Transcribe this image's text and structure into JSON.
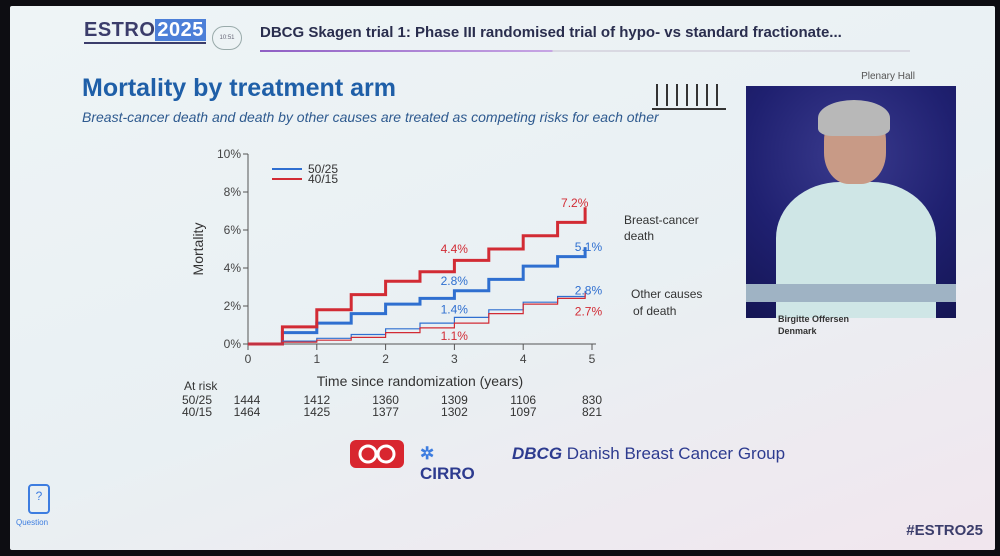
{
  "header": {
    "logo_text": "ESTRO",
    "logo_year": "2025",
    "time_chip": "10:51",
    "session_title": "DBCG Skagen trial 1: Phase III randomised trial of hypo- vs standard fractionate...",
    "hall": "Plenary Hall"
  },
  "slide": {
    "title": "Mortality by treatment arm",
    "subtitle": "Breast-cancer death and death by other causes are treated as competing risks for each other"
  },
  "speaker": {
    "name": "Birgitte Offersen",
    "country": "Denmark"
  },
  "chart_data": {
    "type": "line",
    "xlabel": "Time since randomization (years)",
    "ylabel": "Mortality",
    "xlim": [
      0,
      5
    ],
    "ylim": [
      0,
      10
    ],
    "x_ticks": [
      0,
      1,
      2,
      3,
      4,
      5
    ],
    "y_ticks": [
      "0%",
      "2%",
      "4%",
      "6%",
      "8%",
      "10%"
    ],
    "legend_position": "top-left",
    "legend": [
      {
        "name": "50/25",
        "color": "#2f6fd0"
      },
      {
        "name": "40/15",
        "color": "#d22b34"
      }
    ],
    "series": [
      {
        "group": "Breast-cancer death",
        "name": "50/25",
        "color": "#2f6fd0",
        "weight": "bold",
        "x": [
          0,
          0.5,
          1,
          1.5,
          2,
          2.5,
          3,
          3.5,
          4,
          4.5,
          4.9
        ],
        "y": [
          0,
          0.6,
          1.1,
          1.6,
          2.1,
          2.4,
          2.8,
          3.4,
          4.1,
          4.6,
          5.1
        ]
      },
      {
        "group": "Breast-cancer death",
        "name": "40/15",
        "color": "#d22b34",
        "weight": "bold",
        "x": [
          0,
          0.5,
          1,
          1.5,
          2,
          2.5,
          3,
          3.5,
          4,
          4.5,
          4.9
        ],
        "y": [
          0,
          0.9,
          1.8,
          2.6,
          3.3,
          3.8,
          4.4,
          5.0,
          5.7,
          6.4,
          7.2
        ]
      },
      {
        "group": "Other causes of death",
        "name": "50/25",
        "color": "#2f6fd0",
        "weight": "thin",
        "x": [
          0,
          0.5,
          1,
          1.5,
          2,
          2.5,
          3,
          3.5,
          4,
          4.5,
          4.9
        ],
        "y": [
          0,
          0.15,
          0.3,
          0.5,
          0.8,
          1.1,
          1.4,
          1.8,
          2.2,
          2.5,
          2.8
        ]
      },
      {
        "group": "Other causes of death",
        "name": "40/15",
        "color": "#d22b34",
        "weight": "thin",
        "x": [
          0,
          0.5,
          1,
          1.5,
          2,
          2.5,
          3,
          3.5,
          4,
          4.5,
          4.9
        ],
        "y": [
          0,
          0.1,
          0.2,
          0.35,
          0.6,
          0.85,
          1.1,
          1.6,
          2.1,
          2.4,
          2.7
        ]
      }
    ],
    "annotations": [
      {
        "text": "7.2%",
        "x": 4.55,
        "y": 7.2,
        "color": "#d22b34"
      },
      {
        "text": "5.1%",
        "x": 4.75,
        "y": 4.9,
        "color": "#2f6fd0"
      },
      {
        "text": "4.4%",
        "x": 2.8,
        "y": 4.8,
        "color": "#d22b34"
      },
      {
        "text": "2.8%",
        "x": 2.8,
        "y": 3.1,
        "color": "#2f6fd0"
      },
      {
        "text": "1.4%",
        "x": 2.8,
        "y": 1.6,
        "color": "#2f6fd0"
      },
      {
        "text": "1.1%",
        "x": 2.8,
        "y": 0.2,
        "color": "#d22b34"
      },
      {
        "text": "2.8%",
        "x": 4.75,
        "y": 2.6,
        "color": "#2f6fd0"
      },
      {
        "text": "2.7%",
        "x": 4.75,
        "y": 1.5,
        "color": "#d22b34"
      }
    ],
    "group_labels": [
      {
        "lines": [
          "Breast-cancer",
          "death"
        ]
      },
      {
        "lines": [
          "Other causes",
          "of death"
        ]
      }
    ],
    "at_risk": {
      "title": "At risk",
      "rows": [
        {
          "name": "50/25",
          "values": [
            1444,
            1412,
            1360,
            1309,
            1106,
            830
          ]
        },
        {
          "name": "40/15",
          "values": [
            1464,
            1425,
            1377,
            1302,
            1097,
            821
          ]
        }
      ]
    }
  },
  "footer": {
    "cirro": "CIRRO",
    "dbcg_abbr": "DBCG",
    "dbcg_name": "Danish Breast Cancer Group",
    "question": "Question",
    "hashtag": "#ESTRO25"
  },
  "colors": {
    "brand": "#3b3d6b",
    "title_blue": "#1f5fa8",
    "arm_50_25": "#2f6fd0",
    "arm_40_15": "#d22b34"
  }
}
